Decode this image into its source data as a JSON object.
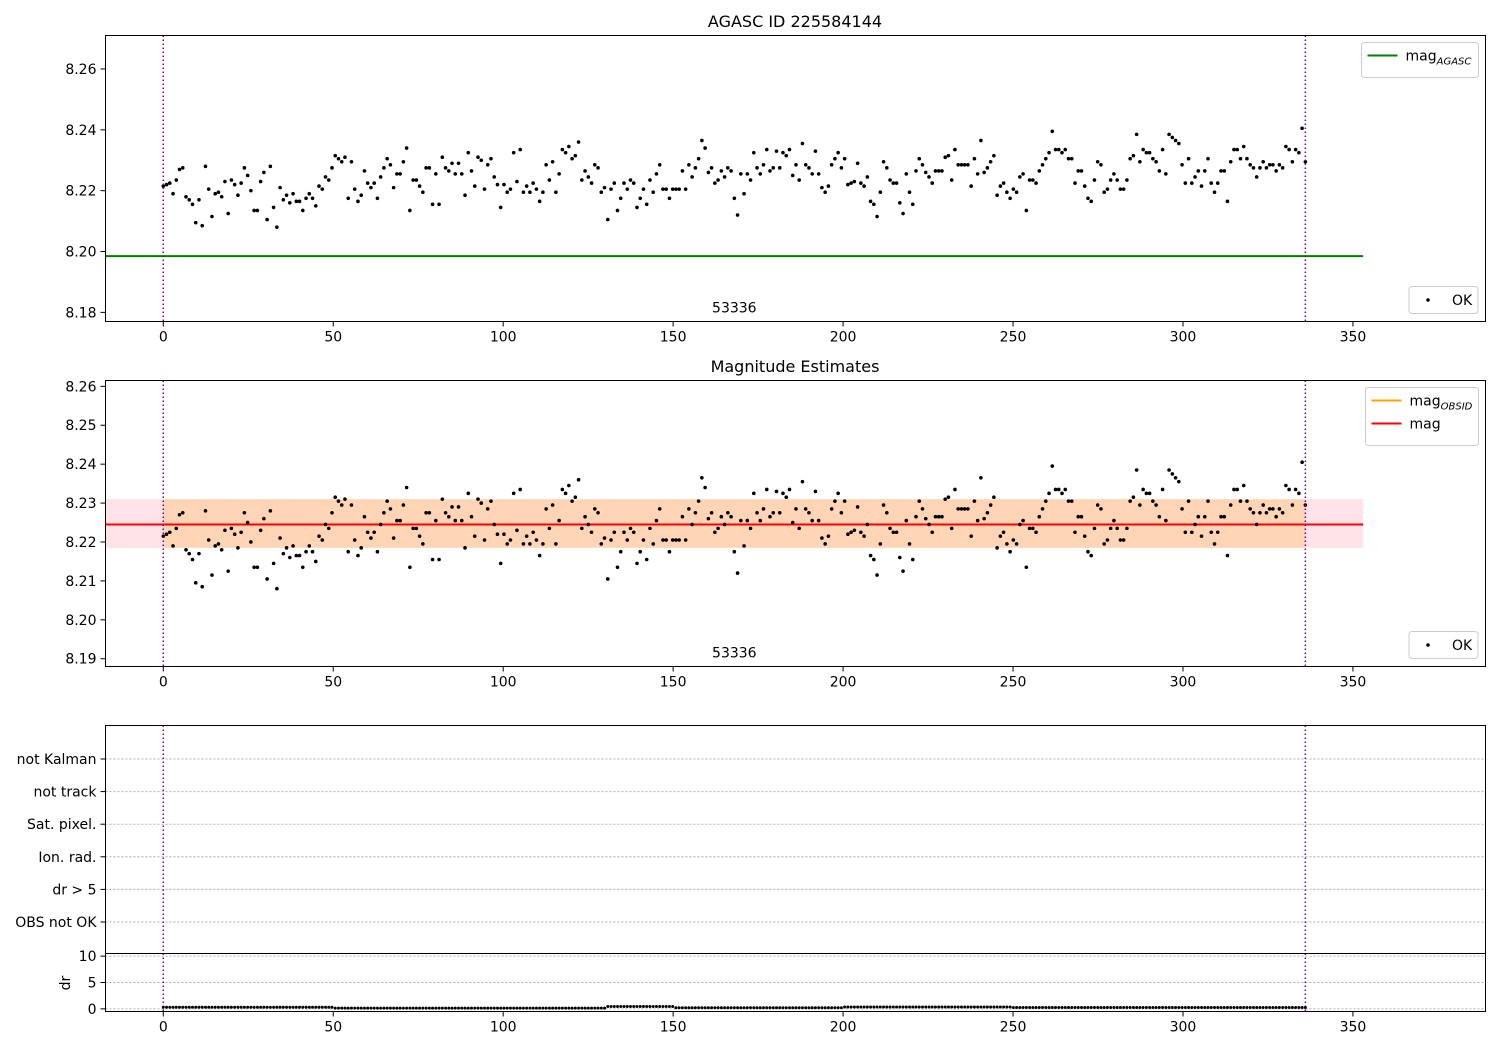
{
  "chart_data": [
    {
      "type": "scatter",
      "title": "AGASC ID 225584144",
      "xlim": [
        -17,
        389
      ],
      "ylim": [
        8.177,
        8.271
      ],
      "x_ticks": [
        0,
        50,
        100,
        150,
        200,
        250,
        300,
        350
      ],
      "y_ticks": [
        8.18,
        8.2,
        8.22,
        8.24,
        8.26
      ],
      "y_tick_labels": [
        "8.18",
        "8.20",
        "8.22",
        "8.24",
        "8.26"
      ],
      "obs_boundaries": [
        0,
        336
      ],
      "obs_label": "53336",
      "obs_label_x": 168,
      "mag_agasc": 8.1985,
      "line_x_range": [
        -17,
        353
      ],
      "legend_lines": [
        {
          "label_main": "mag",
          "label_sub": "AGASC",
          "color": "#008000"
        }
      ],
      "legend_points": "OK",
      "series": [
        {
          "name": "OK",
          "x_start": 0,
          "x_end": 336,
          "values": [
            8.2215,
            8.222,
            8.2225,
            8.219,
            8.2235,
            8.227,
            8.2275,
            8.218,
            8.217,
            8.2155,
            8.2095,
            8.217,
            8.2085,
            8.228,
            8.2205,
            8.2115,
            8.219,
            8.2195,
            8.218,
            8.223,
            8.2125,
            8.2235,
            8.222,
            8.2185,
            8.2225,
            8.2275,
            8.225,
            8.22,
            8.2135,
            8.2135,
            8.223,
            8.226,
            8.2105,
            8.228,
            8.2145,
            8.208,
            8.221,
            8.217,
            8.2185,
            8.216,
            8.219,
            8.2165,
            8.2165,
            8.2135,
            8.2175,
            8.219,
            8.2175,
            8.215,
            8.2215,
            8.2205,
            8.2245,
            8.2235,
            8.2275,
            8.2315,
            8.2305,
            8.2295,
            8.231,
            8.2175,
            8.2295,
            8.2205,
            8.2165,
            8.2185,
            8.2265,
            8.2225,
            8.221,
            8.2225,
            8.2175,
            8.2245,
            8.2275,
            8.2305,
            8.2285,
            8.221,
            8.2255,
            8.2255,
            8.2295,
            8.234,
            8.2135,
            8.2235,
            8.2235,
            8.2215,
            8.2195,
            8.2275,
            8.2275,
            8.2155,
            8.2255,
            8.2155,
            8.231,
            8.2275,
            8.2265,
            8.229,
            8.2255,
            8.229,
            8.2255,
            8.2185,
            8.2325,
            8.2265,
            8.2215,
            8.231,
            8.23,
            8.2205,
            8.2285,
            8.2305,
            8.2245,
            8.222,
            8.2145,
            8.222,
            8.2195,
            8.2205,
            8.2325,
            8.223,
            8.2335,
            8.2195,
            8.2215,
            8.2195,
            8.2225,
            8.2205,
            8.2165,
            8.2195,
            8.2285,
            8.2235,
            8.2295,
            8.2195,
            8.2255,
            8.2335,
            8.2325,
            8.2345,
            8.2305,
            8.2315,
            8.236,
            8.2235,
            8.2265,
            8.2245,
            8.2225,
            8.2285,
            8.2275,
            8.2195,
            8.221,
            8.2105,
            8.2205,
            8.2225,
            8.2135,
            8.2175,
            8.2225,
            8.2205,
            8.2235,
            8.2225,
            8.2145,
            8.2175,
            8.2205,
            8.2155,
            8.2235,
            8.2195,
            8.2255,
            8.2285,
            8.2205,
            8.2205,
            8.2175,
            8.2205,
            8.2205,
            8.2205,
            8.2265,
            8.2205,
            8.2285,
            8.2245,
            8.2275,
            8.2305,
            8.2365,
            8.234,
            8.226,
            8.2275,
            8.2225,
            8.2235,
            8.2265,
            8.2245,
            8.2275,
            8.2265,
            8.2175,
            8.212,
            8.2255,
            8.219,
            8.2255,
            8.2235,
            8.2325,
            8.2275,
            8.2255,
            8.2285,
            8.2335,
            8.2265,
            8.2275,
            8.233,
            8.2275,
            8.2325,
            8.2315,
            8.2335,
            8.225,
            8.2285,
            8.2235,
            8.2355,
            8.2285,
            8.2275,
            8.2255,
            8.233,
            8.2255,
            8.221,
            8.2195,
            8.2215,
            8.2285,
            8.2305,
            8.2325,
            8.2275,
            8.2305,
            8.222,
            8.2225,
            8.223,
            8.229,
            8.2225,
            8.2215,
            8.2245,
            8.2165,
            8.2155,
            8.2115,
            8.2195,
            8.2295,
            8.2275,
            8.2235,
            8.2225,
            8.2225,
            8.216,
            8.2125,
            8.2255,
            8.2195,
            8.2155,
            8.2265,
            8.2305,
            8.2285,
            8.226,
            8.2245,
            8.2225,
            8.2265,
            8.2265,
            8.2265,
            8.231,
            8.2315,
            8.2235,
            8.2335,
            8.2285,
            8.2285,
            8.2285,
            8.2285,
            8.2215,
            8.2305,
            8.2255,
            8.2365,
            8.226,
            8.2275,
            8.2295,
            8.2315,
            8.2185,
            8.2215,
            8.2225,
            8.2195,
            8.2175,
            8.2205,
            8.2195,
            8.2245,
            8.2255,
            8.2135,
            8.2235,
            8.2235,
            8.2225,
            8.2265,
            8.2285,
            8.2305,
            8.2325,
            8.2395,
            8.2335,
            8.2335,
            8.2325,
            8.2335,
            8.2305,
            8.2305,
            8.2225,
            8.2265,
            8.2265,
            8.2215,
            8.2175,
            8.2165,
            8.2235,
            8.2295,
            8.2285,
            8.2195,
            8.2205,
            8.2235,
            8.2255,
            8.2235,
            8.2205,
            8.2205,
            8.2235,
            8.2305,
            8.2315,
            8.2385,
            8.2295,
            8.2335,
            8.2325,
            8.2325,
            8.2305,
            8.2295,
            8.2265,
            8.2335,
            8.2255,
            8.2385,
            8.2375,
            8.2365,
            8.2355,
            8.2285,
            8.2225,
            8.2305,
            8.2225,
            8.2245,
            8.2265,
            8.2215,
            8.2265,
            8.2305,
            8.2225,
            8.2195,
            8.2225,
            8.2265,
            8.2265,
            8.2165,
            8.2295,
            8.2335,
            8.2335,
            8.2305,
            8.2345,
            8.2305,
            8.2285,
            8.2275,
            8.2245,
            8.2275,
            8.2295,
            8.2275,
            8.2285,
            8.2285,
            8.2265,
            8.2285,
            8.2275,
            8.2345,
            8.2335,
            8.2295,
            8.2335,
            8.2325,
            8.2405,
            8.2295
          ]
        }
      ]
    },
    {
      "type": "scatter",
      "title": "Magnitude Estimates",
      "xlim": [
        -17,
        389
      ],
      "ylim": [
        8.188,
        8.2615
      ],
      "x_ticks": [
        0,
        50,
        100,
        150,
        200,
        250,
        300,
        350
      ],
      "y_ticks": [
        8.19,
        8.2,
        8.21,
        8.22,
        8.23,
        8.24,
        8.25,
        8.26
      ],
      "y_tick_labels": [
        "8.19",
        "8.20",
        "8.21",
        "8.22",
        "8.23",
        "8.24",
        "8.25",
        "8.26"
      ],
      "obs_boundaries": [
        0,
        336
      ],
      "obs_label": "53336",
      "obs_label_x": 168,
      "mag_mean": 8.2245,
      "mag_band": [
        8.2185,
        8.231
      ],
      "mag_obsid_band": [
        8.2185,
        8.231
      ],
      "line_x_range": [
        -17,
        353
      ],
      "legend_lines": [
        {
          "label_main": "mag",
          "label_sub": "OBSID",
          "color": "#ffa500"
        },
        {
          "label_main": "mag",
          "label_sub": "",
          "color": "#ff0000"
        }
      ],
      "legend_points": "OK",
      "series": [
        {
          "name": "OK",
          "same_as_panel": 0
        }
      ]
    },
    {
      "type": "scatter",
      "title": "",
      "xlim": [
        -17,
        389
      ],
      "categories": [
        "not Kalman",
        "not track",
        "Sat. pixel.",
        "Ion. rad.",
        "dr > 5",
        "OBS not OK"
      ],
      "flags_set": [],
      "dr_ylabel": "dr",
      "dr_ylim": [
        -0.5,
        10.5
      ],
      "dr_y_ticks": [
        0,
        5,
        10
      ],
      "dr_y_tick_labels": [
        "0",
        "5",
        "10"
      ],
      "x_ticks": [
        0,
        50,
        100,
        150,
        200,
        250,
        300,
        350
      ],
      "obs_boundaries": [
        0,
        336
      ],
      "series": [
        {
          "name": "dr",
          "x_start": 0,
          "x_end": 336,
          "values_description_free": true,
          "segments": [
            {
              "x_from": 0,
              "x_to": 50,
              "value": 0.3
            },
            {
              "x_from": 50,
              "x_to": 130,
              "value": 0.15
            },
            {
              "x_from": 130,
              "x_to": 150,
              "value": 0.45
            },
            {
              "x_from": 150,
              "x_to": 200,
              "value": 0.2
            },
            {
              "x_from": 200,
              "x_to": 250,
              "value": 0.35
            },
            {
              "x_from": 250,
              "x_to": 336,
              "value": 0.25
            }
          ]
        }
      ]
    }
  ]
}
